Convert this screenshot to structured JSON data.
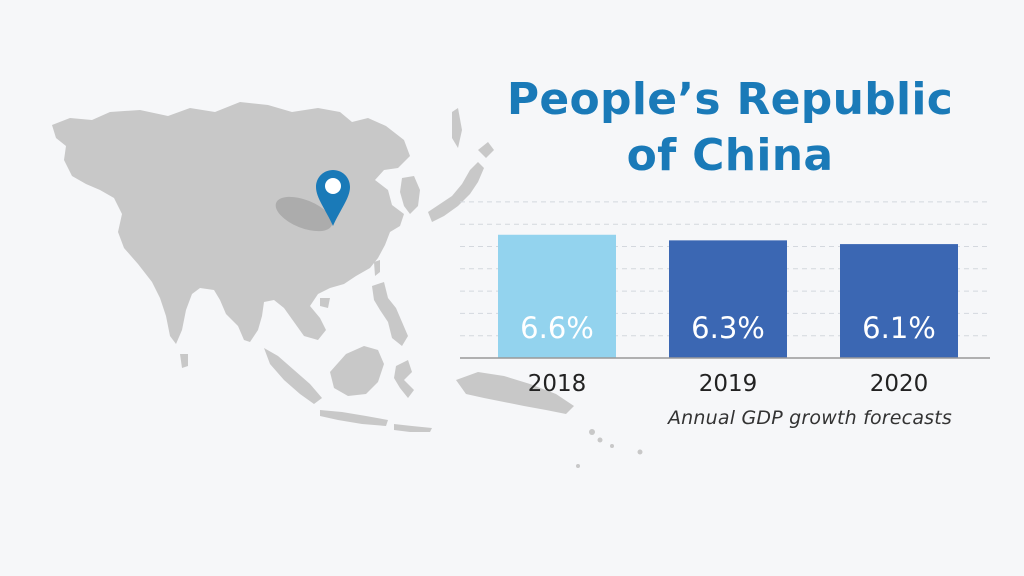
{
  "title_lines": [
    "People’s Republic",
    "of China"
  ],
  "caption": "Annual GDP growth forecasts",
  "colors": {
    "title": "#1a7ab8",
    "map_land": "#c8c8c8",
    "pin": "#1a7ab8",
    "bar_highlight": "#93d3ee",
    "bar_default": "#3b67b3",
    "gridline": "#d4d8de"
  },
  "chart_data": {
    "type": "bar",
    "categories": [
      "2018",
      "2019",
      "2020"
    ],
    "values": [
      6.6,
      6.3,
      6.1
    ],
    "value_labels": [
      "6.6%",
      "6.3%",
      "6.1%"
    ],
    "title": "",
    "xlabel": "",
    "ylabel": "",
    "grid": true,
    "highlight_index": 0
  }
}
